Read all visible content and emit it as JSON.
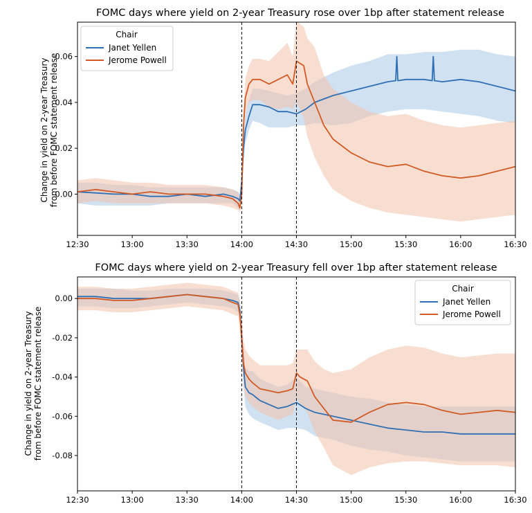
{
  "chart_data": [
    {
      "type": "line",
      "title": "FOMC days where yield on 2-year Treasury rose over 1bp after statement release",
      "xlabel": "",
      "ylabel_lines": [
        "Change in yield on 2-year Treasury",
        "from before FOMC statement release"
      ],
      "x_ticks": [
        "12:30",
        "13:00",
        "13:30",
        "14:00",
        "14:30",
        "15:00",
        "15:30",
        "16:00",
        "16:30"
      ],
      "x_range_minutes": [
        0,
        240
      ],
      "ylim": [
        -0.018,
        0.075
      ],
      "y_ticks": [
        0.0,
        0.02,
        0.04,
        0.06
      ],
      "y_tick_labels": [
        "0.00",
        "0.02",
        "0.04",
        "0.06"
      ],
      "vlines_minutes": [
        90,
        120
      ],
      "legend": {
        "title": "Chair",
        "placement": "top-left"
      },
      "series": [
        {
          "name": "Janet Yellen",
          "color": "#2f6fb3",
          "band_color": "#a9c8e6",
          "x": [
            0,
            10,
            20,
            30,
            40,
            50,
            60,
            70,
            80,
            85,
            88,
            89,
            90,
            91,
            92,
            94,
            96,
            100,
            105,
            110,
            115,
            120,
            125,
            130,
            140,
            150,
            160,
            170,
            180,
            190,
            200,
            210,
            220,
            230,
            240
          ],
          "y": [
            0.001,
            0.0005,
            0.0,
            0.0,
            -0.001,
            -0.001,
            0.0,
            -0.001,
            0.0,
            -0.001,
            -0.002,
            -0.003,
            0.005,
            0.02,
            0.028,
            0.034,
            0.039,
            0.039,
            0.038,
            0.036,
            0.036,
            0.035,
            0.037,
            0.04,
            0.043,
            0.045,
            0.047,
            0.049,
            0.05,
            0.05,
            0.049,
            0.05,
            0.049,
            0.047,
            0.045
          ],
          "lower": [
            -0.004,
            -0.005,
            -0.005,
            -0.005,
            -0.005,
            -0.004,
            -0.004,
            -0.004,
            -0.004,
            -0.004,
            -0.006,
            -0.007,
            -0.001,
            0.015,
            0.022,
            0.028,
            0.032,
            0.031,
            0.029,
            0.029,
            0.029,
            0.03,
            0.03,
            0.031,
            0.03,
            0.031,
            0.034,
            0.036,
            0.037,
            0.037,
            0.036,
            0.035,
            0.034,
            0.032,
            0.031
          ],
          "upper": [
            0.005,
            0.005,
            0.004,
            0.004,
            0.003,
            0.003,
            0.003,
            0.003,
            0.003,
            0.002,
            0.001,
            0.0,
            0.01,
            0.026,
            0.035,
            0.041,
            0.046,
            0.046,
            0.045,
            0.044,
            0.043,
            0.044,
            0.046,
            0.049,
            0.053,
            0.056,
            0.058,
            0.061,
            0.061,
            0.062,
            0.062,
            0.063,
            0.063,
            0.061,
            0.06
          ],
          "spikes": [
            {
              "x": 175,
              "y": 0.06
            },
            {
              "x": 195,
              "y": 0.06
            }
          ]
        },
        {
          "name": "Jerome Powell",
          "color": "#d15a24",
          "band_color": "#f2c2ab",
          "x": [
            0,
            10,
            20,
            30,
            40,
            50,
            60,
            70,
            80,
            85,
            88,
            89,
            90,
            91,
            92,
            94,
            96,
            100,
            105,
            110,
            115,
            118,
            120,
            122,
            124,
            126,
            130,
            135,
            140,
            150,
            160,
            170,
            180,
            190,
            200,
            210,
            220,
            230,
            240
          ],
          "y": [
            0.001,
            0.002,
            0.001,
            0.0,
            0.001,
            0.0,
            0.0,
            0.0,
            -0.001,
            -0.002,
            -0.004,
            -0.006,
            0.0,
            0.03,
            0.042,
            0.048,
            0.05,
            0.05,
            0.048,
            0.05,
            0.052,
            0.048,
            0.058,
            0.057,
            0.056,
            0.048,
            0.04,
            0.03,
            0.024,
            0.018,
            0.014,
            0.012,
            0.013,
            0.01,
            0.008,
            0.007,
            0.008,
            0.01,
            0.012
          ],
          "lower": [
            -0.004,
            -0.003,
            -0.004,
            -0.004,
            -0.004,
            -0.004,
            -0.004,
            -0.004,
            -0.005,
            -0.006,
            -0.007,
            -0.008,
            -0.005,
            0.023,
            0.035,
            0.04,
            0.041,
            0.041,
            0.038,
            0.037,
            0.038,
            0.037,
            0.04,
            0.037,
            0.033,
            0.025,
            0.016,
            0.008,
            0.002,
            -0.003,
            -0.006,
            -0.008,
            -0.009,
            -0.01,
            -0.011,
            -0.012,
            -0.011,
            -0.01,
            -0.009
          ],
          "upper": [
            0.006,
            0.007,
            0.006,
            0.005,
            0.005,
            0.004,
            0.004,
            0.004,
            0.003,
            0.002,
            0.001,
            -0.002,
            0.005,
            0.036,
            0.05,
            0.056,
            0.059,
            0.059,
            0.058,
            0.062,
            0.066,
            0.06,
            0.076,
            0.074,
            0.073,
            0.068,
            0.064,
            0.052,
            0.046,
            0.04,
            0.036,
            0.034,
            0.035,
            0.032,
            0.03,
            0.029,
            0.03,
            0.031,
            0.032
          ]
        }
      ]
    },
    {
      "type": "line",
      "title": "FOMC days where yield on 2-year Treasury fell over 1bp after statement release",
      "xlabel": "",
      "ylabel_lines": [
        "Change in yield on 2-year Treasury",
        "from before FOMC statement release"
      ],
      "x_ticks": [
        "12:30",
        "13:00",
        "13:30",
        "14:00",
        "14:30",
        "15:00",
        "15:30",
        "16:00",
        "16:30"
      ],
      "x_range_minutes": [
        0,
        240
      ],
      "ylim": [
        -0.098,
        0.011
      ],
      "y_ticks": [
        0.0,
        -0.02,
        -0.04,
        -0.06,
        -0.08
      ],
      "y_tick_labels": [
        "0.00",
        "-0.02",
        "-0.04",
        "-0.06",
        "-0.08"
      ],
      "vlines_minutes": [
        90,
        120
      ],
      "legend": {
        "title": "Chair",
        "placement": "top-right"
      },
      "series": [
        {
          "name": "Janet Yellen",
          "color": "#2f6fb3",
          "band_color": "#a9c8e6",
          "x": [
            0,
            10,
            20,
            30,
            40,
            50,
            60,
            70,
            80,
            85,
            88,
            89,
            90,
            91,
            92,
            94,
            96,
            100,
            105,
            110,
            115,
            120,
            125,
            130,
            140,
            150,
            160,
            170,
            180,
            190,
            200,
            210,
            220,
            230,
            240
          ],
          "y": [
            0.001,
            0.001,
            0.0,
            0.0,
            0.0,
            0.001,
            0.002,
            0.001,
            0.0,
            -0.001,
            -0.002,
            -0.006,
            -0.02,
            -0.035,
            -0.045,
            -0.048,
            -0.049,
            -0.052,
            -0.054,
            -0.056,
            -0.055,
            -0.053,
            -0.056,
            -0.058,
            -0.06,
            -0.062,
            -0.064,
            -0.066,
            -0.067,
            -0.068,
            -0.068,
            -0.069,
            -0.069,
            -0.069,
            -0.069
          ],
          "lower": [
            -0.004,
            -0.004,
            -0.005,
            -0.005,
            -0.004,
            -0.003,
            -0.002,
            -0.003,
            -0.004,
            -0.005,
            -0.007,
            -0.011,
            -0.027,
            -0.045,
            -0.055,
            -0.059,
            -0.061,
            -0.063,
            -0.065,
            -0.067,
            -0.066,
            -0.066,
            -0.067,
            -0.07,
            -0.072,
            -0.075,
            -0.077,
            -0.078,
            -0.08,
            -0.081,
            -0.082,
            -0.083,
            -0.083,
            -0.083,
            -0.083
          ],
          "upper": [
            0.005,
            0.005,
            0.005,
            0.004,
            0.004,
            0.005,
            0.005,
            0.005,
            0.004,
            0.003,
            0.002,
            -0.001,
            -0.013,
            -0.025,
            -0.035,
            -0.037,
            -0.037,
            -0.041,
            -0.043,
            -0.045,
            -0.044,
            -0.04,
            -0.045,
            -0.046,
            -0.048,
            -0.05,
            -0.051,
            -0.053,
            -0.054,
            -0.055,
            -0.055,
            -0.055,
            -0.055,
            -0.055,
            -0.055
          ]
        },
        {
          "name": "Jerome Powell",
          "color": "#d15a24",
          "band_color": "#f2c2ab",
          "x": [
            0,
            10,
            20,
            30,
            40,
            50,
            60,
            70,
            80,
            85,
            88,
            89,
            90,
            91,
            92,
            94,
            96,
            100,
            105,
            110,
            115,
            118,
            120,
            122,
            124,
            126,
            130,
            135,
            140,
            150,
            160,
            170,
            180,
            190,
            200,
            210,
            220,
            230,
            240
          ],
          "y": [
            0.0,
            0.0,
            -0.001,
            -0.001,
            0.0,
            0.001,
            0.002,
            0.001,
            0.0,
            -0.002,
            -0.003,
            -0.008,
            -0.02,
            -0.033,
            -0.038,
            -0.041,
            -0.043,
            -0.046,
            -0.047,
            -0.048,
            -0.047,
            -0.046,
            -0.038,
            -0.04,
            -0.041,
            -0.042,
            -0.05,
            -0.056,
            -0.062,
            -0.063,
            -0.058,
            -0.054,
            -0.053,
            -0.054,
            -0.057,
            -0.059,
            -0.058,
            -0.057,
            -0.058
          ],
          "lower": [
            -0.006,
            -0.006,
            -0.007,
            -0.007,
            -0.006,
            -0.005,
            -0.004,
            -0.005,
            -0.006,
            -0.008,
            -0.009,
            -0.015,
            -0.03,
            -0.045,
            -0.05,
            -0.053,
            -0.055,
            -0.058,
            -0.06,
            -0.062,
            -0.06,
            -0.059,
            -0.05,
            -0.054,
            -0.056,
            -0.058,
            -0.068,
            -0.076,
            -0.085,
            -0.09,
            -0.086,
            -0.084,
            -0.083,
            -0.083,
            -0.084,
            -0.085,
            -0.085,
            -0.085,
            -0.086
          ],
          "upper": [
            0.006,
            0.006,
            0.005,
            0.005,
            0.006,
            0.007,
            0.008,
            0.007,
            0.006,
            0.004,
            0.003,
            -0.001,
            -0.01,
            -0.021,
            -0.026,
            -0.029,
            -0.031,
            -0.034,
            -0.034,
            -0.034,
            -0.034,
            -0.033,
            -0.026,
            -0.026,
            -0.026,
            -0.026,
            -0.032,
            -0.036,
            -0.038,
            -0.036,
            -0.03,
            -0.026,
            -0.024,
            -0.025,
            -0.028,
            -0.03,
            -0.029,
            -0.028,
            -0.028
          ]
        }
      ]
    }
  ]
}
